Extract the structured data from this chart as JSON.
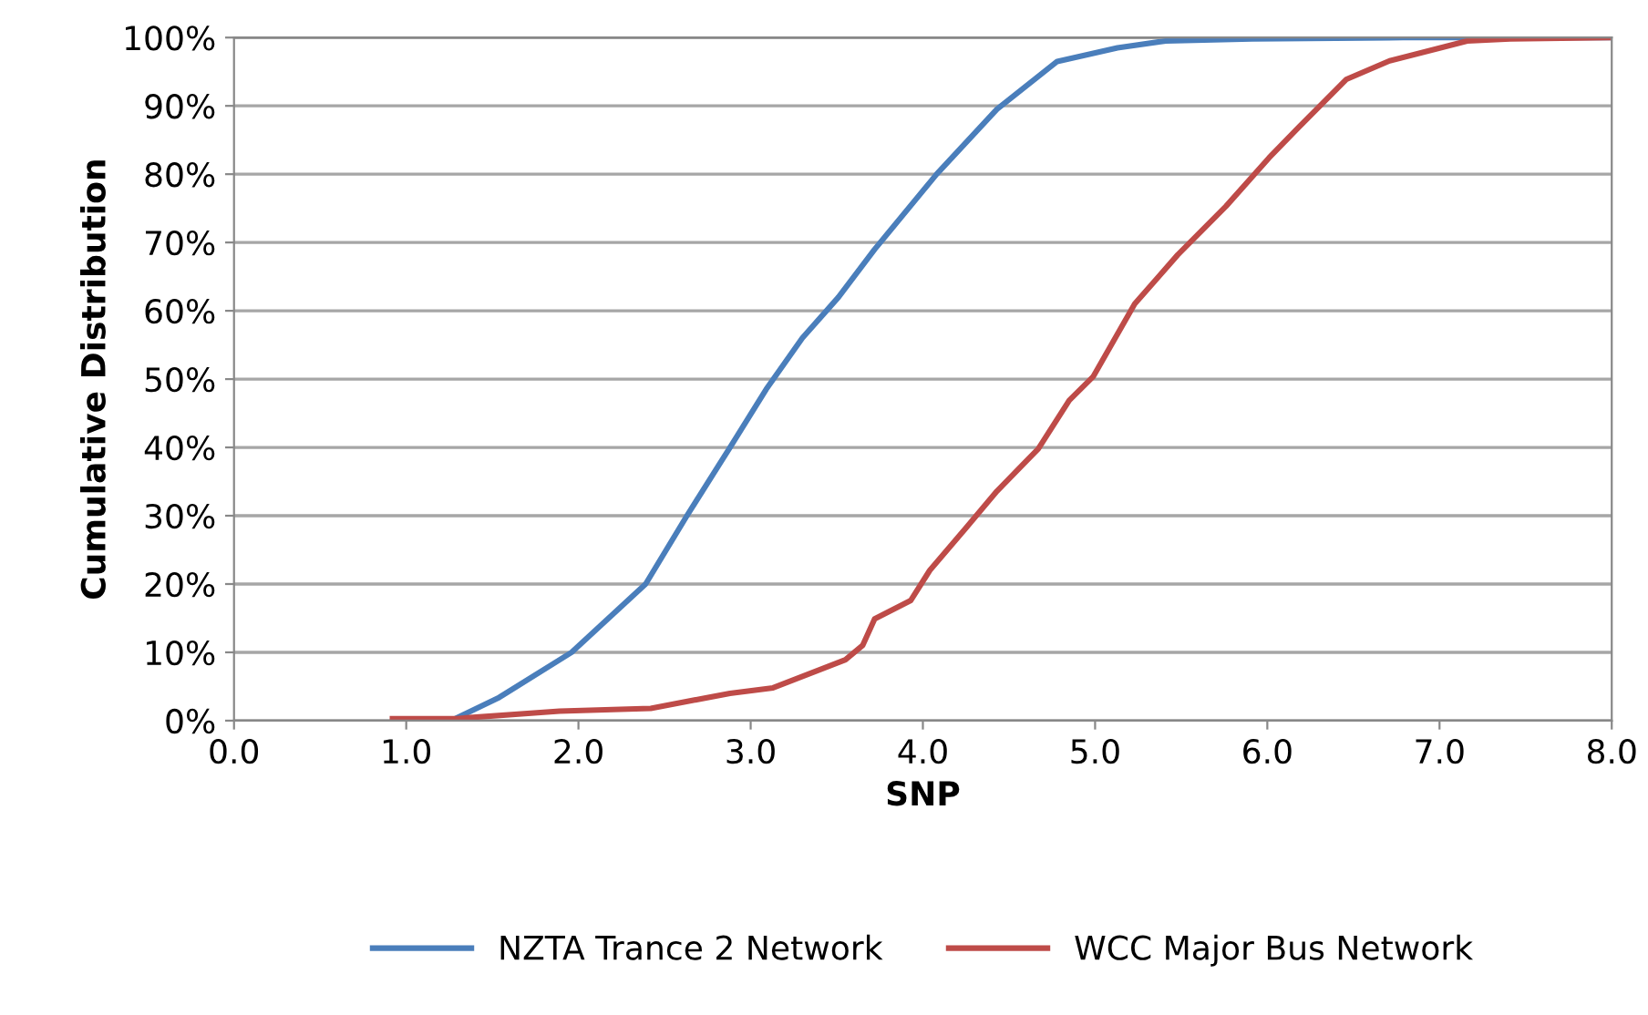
{
  "chart_data": {
    "type": "line",
    "xlabel": "SNP",
    "ylabel": "Cumulative Distribution",
    "xlim": [
      0,
      8
    ],
    "ylim": [
      0,
      100
    ],
    "xticks": [
      {
        "value": 0,
        "label": "0.0"
      },
      {
        "value": 1,
        "label": "1.0"
      },
      {
        "value": 2,
        "label": "2.0"
      },
      {
        "value": 3,
        "label": "3.0"
      },
      {
        "value": 4,
        "label": "4.0"
      },
      {
        "value": 5,
        "label": "5.0"
      },
      {
        "value": 6,
        "label": "6.0"
      },
      {
        "value": 7,
        "label": "7.0"
      },
      {
        "value": 8,
        "label": "8.0"
      }
    ],
    "yticks": [
      {
        "value": 0,
        "label": "0%"
      },
      {
        "value": 10,
        "label": "10%"
      },
      {
        "value": 20,
        "label": "20%"
      },
      {
        "value": 30,
        "label": "30%"
      },
      {
        "value": 40,
        "label": "40%"
      },
      {
        "value": 50,
        "label": "50%"
      },
      {
        "value": 60,
        "label": "60%"
      },
      {
        "value": 70,
        "label": "70%"
      },
      {
        "value": 80,
        "label": "80%"
      },
      {
        "value": 90,
        "label": "90%"
      },
      {
        "value": 100,
        "label": "100%"
      }
    ],
    "grid": "y",
    "legend": "bottom",
    "marker": "none",
    "line_style": "solid",
    "series": [
      {
        "name": "NZTA Trance 2 Network",
        "color": "#4a7ebb",
        "x": [
          1.26,
          1.54,
          1.96,
          2.39,
          2.63,
          2.88,
          3.09,
          3.3,
          3.51,
          3.72,
          4.08,
          4.43,
          4.78,
          5.13,
          5.41,
          5.91,
          6.79,
          8.0
        ],
        "values": [
          0,
          3.4,
          10,
          20,
          30,
          40,
          48.5,
          56,
          62,
          69,
          80,
          89.5,
          96.5,
          98.5,
          99.5,
          99.8,
          100,
          100
        ]
      },
      {
        "name": "WCC Major Bus Network",
        "color": "#be4b48",
        "x": [
          0.92,
          1.29,
          1.89,
          2.42,
          2.88,
          3.13,
          3.55,
          3.65,
          3.72,
          3.93,
          4.04,
          4.25,
          4.43,
          4.67,
          4.85,
          4.99,
          5.23,
          5.48,
          5.76,
          6.01,
          6.18,
          6.46,
          6.71,
          6.99,
          7.16,
          7.41,
          8.0
        ],
        "values": [
          0.3,
          0.3,
          1.4,
          1.8,
          4,
          4.8,
          8.9,
          11,
          14.9,
          17.6,
          22,
          28.2,
          33.6,
          39.8,
          46.9,
          50.4,
          61,
          68.2,
          75.3,
          82.4,
          86.8,
          93.9,
          96.6,
          98.4,
          99.5,
          99.8,
          100
        ]
      }
    ]
  }
}
